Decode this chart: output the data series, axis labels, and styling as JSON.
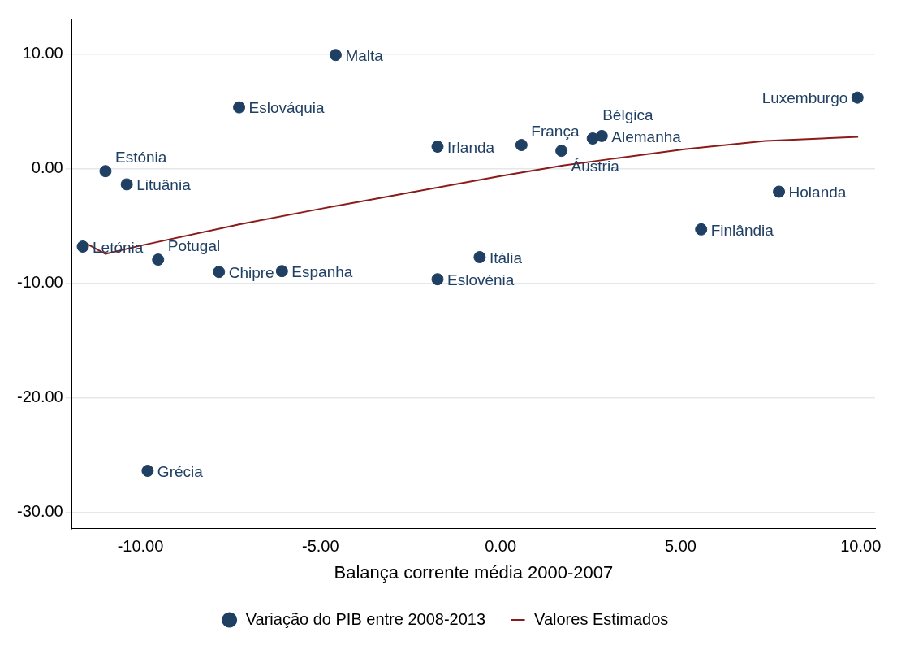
{
  "chart_data": {
    "type": "scatter",
    "xlabel": "Balança corrente média 2000-2007",
    "xlim": [
      -11.9,
      10.4
    ],
    "ylim": [
      -31.4,
      13.1
    ],
    "xticks": [
      {
        "value": -10,
        "label": "-10.00"
      },
      {
        "value": -5,
        "label": "-5.00"
      },
      {
        "value": 0,
        "label": "0.00"
      },
      {
        "value": 5,
        "label": "5.00"
      },
      {
        "value": 10,
        "label": "10.00"
      }
    ],
    "yticks": [
      {
        "value": -30,
        "label": "-30.00"
      },
      {
        "value": -20,
        "label": "-20.00"
      },
      {
        "value": -10,
        "label": "-10.00"
      },
      {
        "value": 0,
        "label": "0.00"
      },
      {
        "value": 10,
        "label": "10.00"
      }
    ],
    "grid": "y",
    "legend": "bottom",
    "marker": "circle",
    "series": [
      {
        "name": "Variação do PIB entre 2008-2013",
        "color": "#1f3f63",
        "x": [
          -4.58,
          -7.26,
          9.91,
          -1.75,
          0.58,
          1.69,
          2.56,
          2.81,
          -10.97,
          -10.38,
          7.73,
          5.57,
          -11.6,
          -9.51,
          -7.82,
          -6.07,
          -0.58,
          -1.75,
          -9.8
        ],
        "values": [
          9.93,
          5.36,
          6.21,
          1.93,
          2.07,
          1.57,
          2.64,
          2.86,
          -0.21,
          -1.36,
          -2.0,
          -5.29,
          -6.79,
          -7.93,
          -9.0,
          -8.93,
          -7.71,
          -9.64,
          -26.36
        ]
      },
      {
        "name": "Valores Estimados",
        "type": "line",
        "color": "#8b1a1a",
        "marker": "none",
        "x": [
          -11.6,
          -10.97,
          -10,
          -7.26,
          -5.01,
          -2.76,
          0,
          1.73,
          3.08,
          5.1,
          7.35,
          9.93
        ],
        "values": [
          -6.36,
          -7.43,
          -6.71,
          -4.86,
          -3.5,
          -2.21,
          -0.64,
          0.29,
          0.86,
          1.71,
          2.43,
          2.79
        ]
      }
    ],
    "annotations": [
      {
        "text": "Malta",
        "x": -4.58,
        "y": 9.93
      },
      {
        "text": "Eslováquia",
        "x": -7.26,
        "y": 5.36
      },
      {
        "text": "Luxemburgo",
        "x": 9.91,
        "y": 6.21
      },
      {
        "text": "Irlanda",
        "x": -1.75,
        "y": 1.93
      },
      {
        "text": "França",
        "x": 0.58,
        "y": 2.07
      },
      {
        "text": "Áustria",
        "x": 1.69,
        "y": 1.57
      },
      {
        "text": "Bélgica",
        "x": 2.56,
        "y": 2.64
      },
      {
        "text": "Alemanha",
        "x": 2.81,
        "y": 2.86
      },
      {
        "text": "Estónia",
        "x": -10.97,
        "y": -0.21
      },
      {
        "text": "Lituânia",
        "x": -10.38,
        "y": -1.36
      },
      {
        "text": "Holanda",
        "x": 7.73,
        "y": -2.0
      },
      {
        "text": "Finlândia",
        "x": 5.57,
        "y": -5.29
      },
      {
        "text": "Letónia",
        "x": -11.6,
        "y": -6.79
      },
      {
        "text": "Potugal",
        "x": -9.51,
        "y": -7.93
      },
      {
        "text": "Chipre",
        "x": -7.82,
        "y": -9.0
      },
      {
        "text": "Espanha",
        "x": -6.07,
        "y": -8.93
      },
      {
        "text": "Itália",
        "x": -0.58,
        "y": -7.71
      },
      {
        "text": "Eslovénia",
        "x": -1.75,
        "y": -9.64
      },
      {
        "text": "Grécia",
        "x": -9.8,
        "y": -26.36
      }
    ]
  }
}
